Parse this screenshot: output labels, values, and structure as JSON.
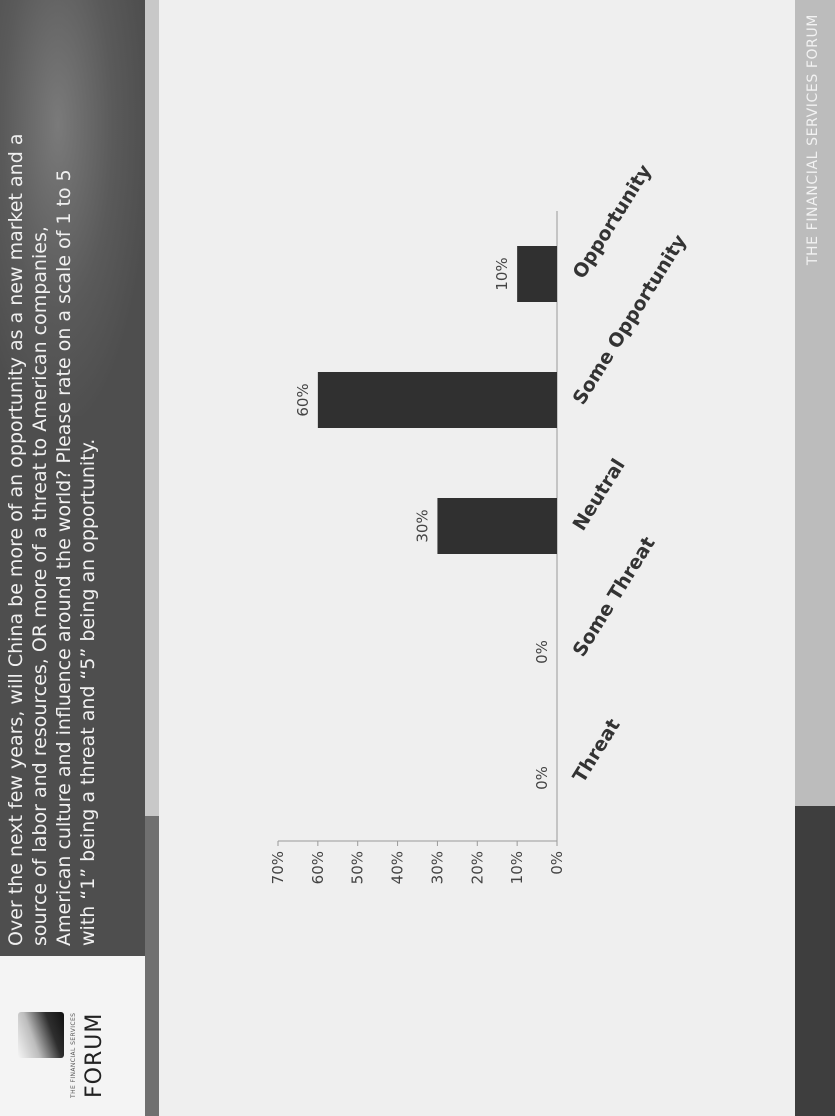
{
  "slide": {
    "question_lines": [
      "Over the next few years, will China be more of an opportunity as a new market and a",
      "source of labor and resources, OR more of a threat to American companies,",
      "American culture and influence around the world? Please rate on a scale of 1 to 5",
      "with “1” being a threat and “5” being an opportunity."
    ],
    "logo_small": "THE FINANCIAL SERVICES",
    "logo_word": "FORUM",
    "footer": "THE FINANCIAL SERVICES FORUM"
  },
  "colors": {
    "bar": "#303030",
    "header": "#4e4e4e",
    "axis": "#9a9a9a"
  },
  "chart_data": {
    "type": "bar",
    "title": "",
    "xlabel": "",
    "ylabel": "",
    "categories": [
      "Threat",
      "Some Threat",
      "Neutral",
      "Some Opportunity",
      "Opportunity"
    ],
    "values": [
      0,
      0,
      30,
      60,
      10
    ],
    "data_labels": [
      "0%",
      "0%",
      "30%",
      "60%",
      "10%"
    ],
    "y_ticks": [
      "0%",
      "10%",
      "20%",
      "30%",
      "40%",
      "50%",
      "60%",
      "70%"
    ],
    "ylim": [
      0,
      70
    ],
    "unit": "%",
    "grid": false,
    "legend": "none"
  }
}
